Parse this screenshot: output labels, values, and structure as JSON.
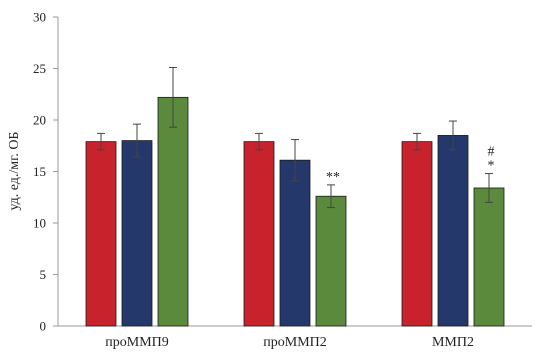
{
  "chart_data": {
    "type": "bar",
    "title": "",
    "xlabel": "",
    "ylabel": "уд. ед./мг. ОБ",
    "ylim": [
      0,
      30
    ],
    "yticks": [
      0,
      5,
      10,
      15,
      20,
      25,
      30
    ],
    "grid": false,
    "legend": "none",
    "categories": [
      "проММП9",
      "проММП2",
      "ММП2"
    ],
    "series": [
      {
        "color": "#c8232c",
        "values": [
          17.9,
          17.9,
          17.9
        ],
        "errors": [
          0.8,
          0.8,
          0.8
        ]
      },
      {
        "color": "#25386b",
        "values": [
          18.0,
          16.1,
          18.5
        ],
        "errors": [
          1.6,
          2.0,
          1.4
        ]
      },
      {
        "color": "#5b8a3c",
        "values": [
          22.2,
          12.6,
          13.4
        ],
        "errors": [
          2.9,
          1.1,
          1.4
        ]
      }
    ],
    "annotations": [
      {
        "category": 1,
        "series": 2,
        "lines": [
          "**"
        ]
      },
      {
        "category": 2,
        "series": 2,
        "lines": [
          "#",
          "*"
        ]
      }
    ]
  }
}
